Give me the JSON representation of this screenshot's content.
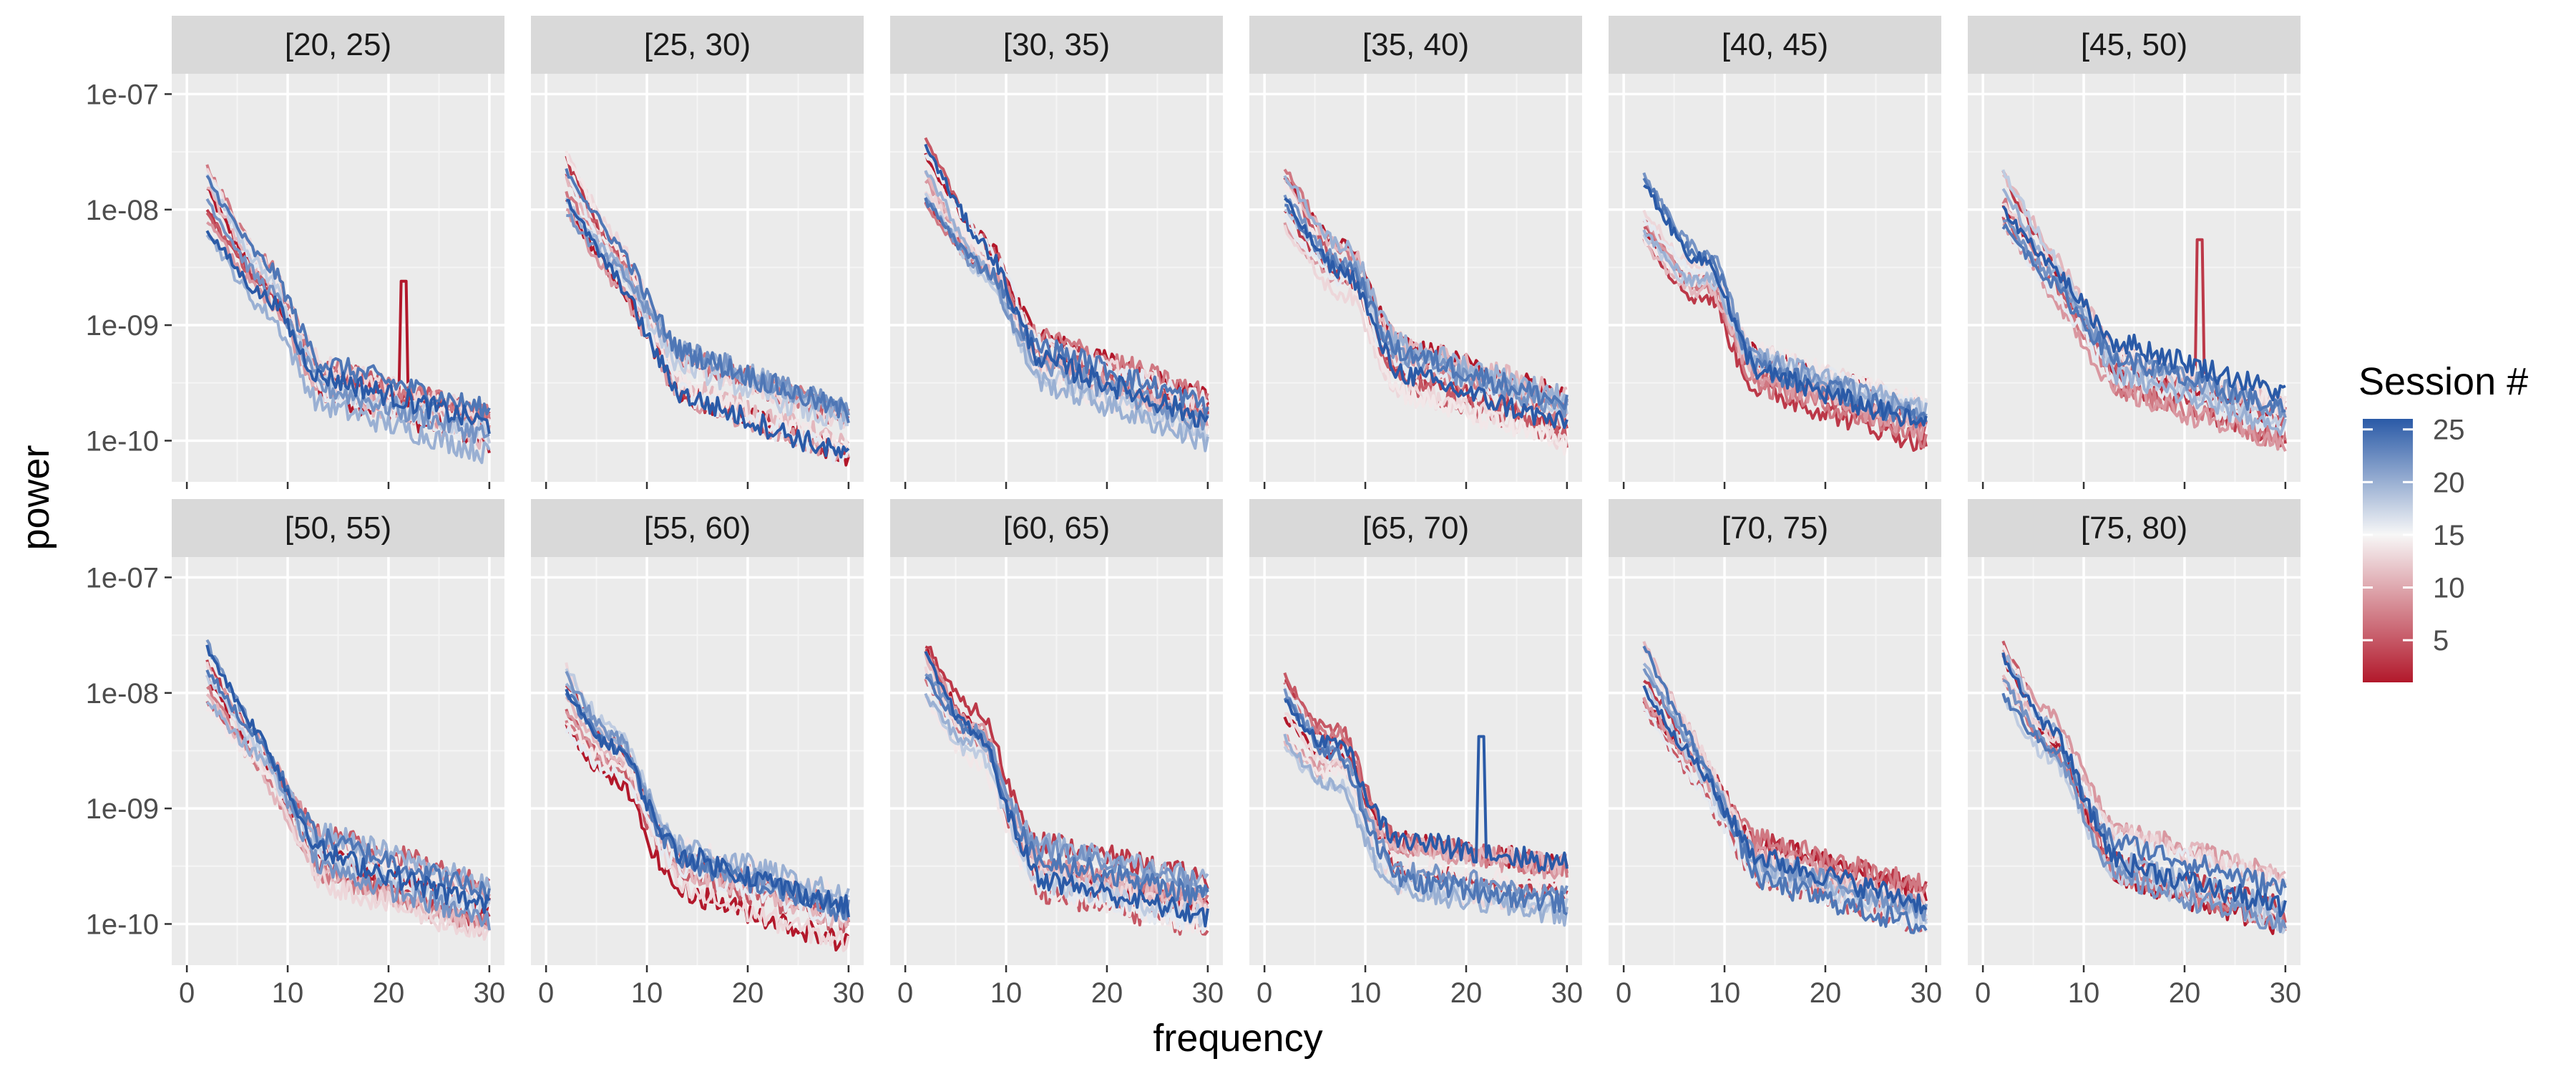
{
  "chart_data": {
    "type": "line",
    "facet_labels": [
      "[20, 25)",
      "[25, 30)",
      "[30, 35)",
      "[35, 40)",
      "[40, 45)",
      "[45, 50)",
      "[50, 55)",
      "[55, 60)",
      "[60, 65)",
      "[65, 70)",
      "[70, 75)",
      "[75, 80)"
    ],
    "xlabel": "frequency",
    "ylabel": "power",
    "x_ticks": [
      "0",
      "10",
      "20",
      "30"
    ],
    "x_tick_values": [
      0,
      10,
      20,
      30
    ],
    "xlim": [
      -1.5,
      31.5
    ],
    "y_scale": "log10",
    "y_ticks": [
      "1e-07",
      "1e-08",
      "1e-09",
      "1e-10"
    ],
    "y_tick_values": [
      1e-07,
      1e-08,
      1e-09,
      1e-10
    ],
    "ylim": [
      4.4e-11,
      1.5e-07
    ],
    "x_range": [
      2,
      30
    ],
    "grid": true,
    "legend": {
      "title": "Session #",
      "position": "right",
      "ticks": [
        "5",
        "10",
        "15",
        "20",
        "25"
      ],
      "tick_values": [
        5,
        10,
        15,
        20,
        25
      ],
      "range": [
        1,
        26
      ],
      "color_low": "#b2182b",
      "color_mid": "#f7f7f7",
      "color_high": "#2a5aa7"
    },
    "series_per_panel": 14,
    "panels": [
      {
        "label": "[20, 25)",
        "start": 1.2e-08,
        "alpha_peak": 1.7e-09,
        "alpha_freq": 9,
        "mid": 3.3e-10,
        "end": 1.2e-10,
        "peak_at": 21.5,
        "peak_value": 2.4e-09
      },
      {
        "label": "[25, 30)",
        "start": 1.6e-08,
        "alpha_peak": 2.6e-09,
        "alpha_freq": 8,
        "mid": 4e-10,
        "end": 1.1e-10
      },
      {
        "label": "[30, 35)",
        "start": 2e-08,
        "alpha_peak": 2.8e-09,
        "alpha_freq": 9,
        "mid": 5.5e-10,
        "end": 1.6e-10
      },
      {
        "label": "[35, 40)",
        "start": 1.3e-08,
        "alpha_peak": 2.6e-09,
        "alpha_freq": 9,
        "mid": 4.5e-10,
        "end": 1.5e-10
      },
      {
        "label": "[40, 45)",
        "start": 1e-08,
        "alpha_peak": 2.6e-09,
        "alpha_freq": 9,
        "mid": 4.5e-10,
        "end": 1.5e-10
      },
      {
        "label": "[45, 50)",
        "start": 1.4e-08,
        "alpha_peak": 2.3e-09,
        "alpha_freq": 8,
        "mid": 4.5e-10,
        "end": 1.5e-10,
        "peak_at": 21.5,
        "peak_value": 5.5e-09
      },
      {
        "label": "[50, 55)",
        "start": 1.4e-08,
        "alpha_peak": 2.4e-09,
        "alpha_freq": 8,
        "mid": 4e-10,
        "end": 1.3e-10
      },
      {
        "label": "[55, 60)",
        "start": 9e-09,
        "alpha_peak": 2.4e-09,
        "alpha_freq": 8,
        "mid": 3.3e-10,
        "end": 1.1e-10
      },
      {
        "label": "[60, 65)",
        "start": 1.6e-08,
        "alpha_peak": 3.5e-09,
        "alpha_freq": 8,
        "mid": 3.3e-10,
        "end": 1.5e-10
      },
      {
        "label": "[65, 70)",
        "start": 7e-09,
        "alpha_peak": 2.5e-09,
        "alpha_freq": 8,
        "mid": 3.3e-10,
        "end": 2e-10,
        "peak_at": 21.5,
        "peak_value": 4.2e-09
      },
      {
        "label": "[70, 75)",
        "start": 1.4e-08,
        "alpha_peak": 2.2e-09,
        "alpha_freq": 8,
        "mid": 4e-10,
        "end": 1.5e-10
      },
      {
        "label": "[75, 80)",
        "start": 1.4e-08,
        "alpha_peak": 3e-09,
        "alpha_freq": 8,
        "mid": 4e-10,
        "end": 1.5e-10
      }
    ]
  }
}
